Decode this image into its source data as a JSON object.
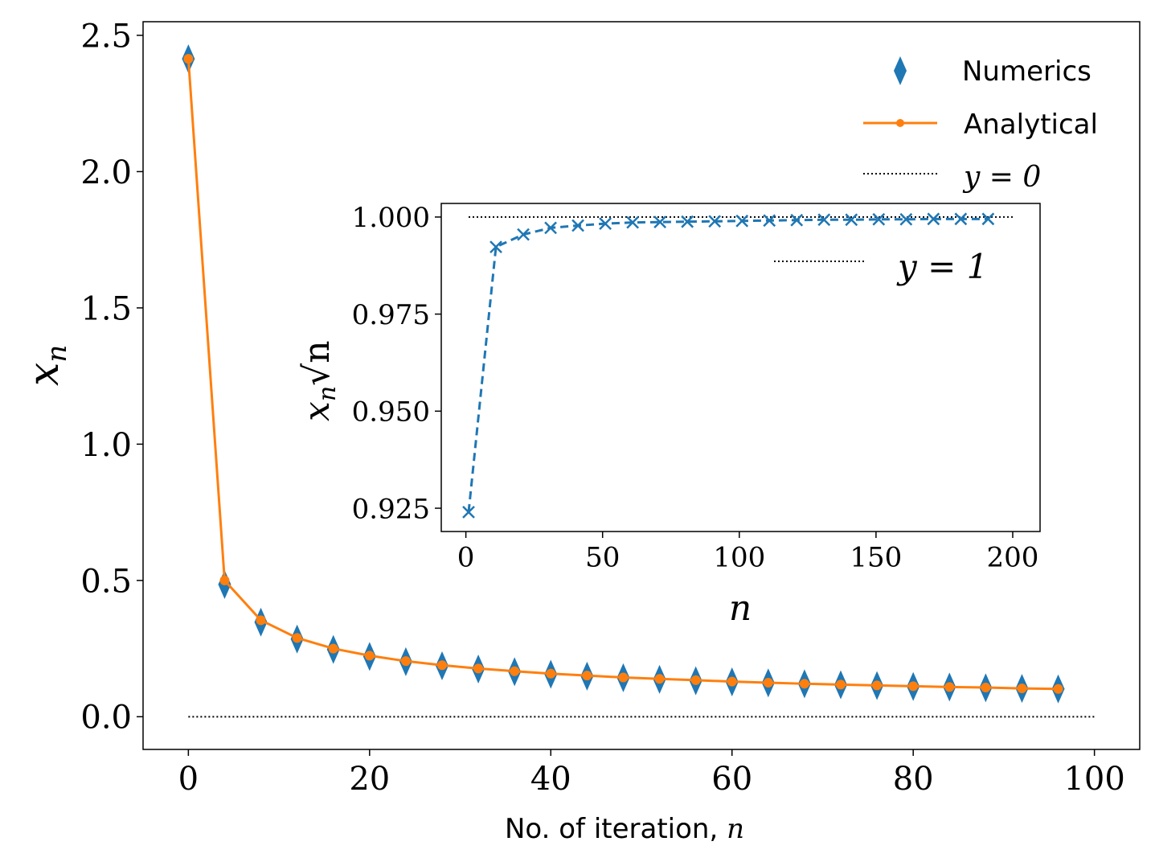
{
  "chart_data": [
    {
      "type": "line",
      "xlabel_text": "No. of iteration, ",
      "xlabel_var": "n",
      "ylabel": "x",
      "ylabel_sub": "n",
      "xlim": [
        -5,
        105
      ],
      "ylim": [
        -0.12,
        2.55
      ],
      "xticks": [
        "0",
        "20",
        "40",
        "60",
        "80",
        "100"
      ],
      "xtick_values": [
        0,
        20,
        40,
        60,
        80,
        100
      ],
      "yticks": [
        "0.0",
        "0.5",
        "1.0",
        "1.5",
        "2.0",
        "2.5"
      ],
      "ytick_values": [
        0.0,
        0.5,
        1.0,
        1.5,
        2.0,
        2.5
      ],
      "legend": [
        "Numerics",
        "Analytical",
        "y = 0"
      ],
      "legend_position": "top-right",
      "series": [
        {
          "name": "Numerics",
          "style": "diamond-markers",
          "color": "#1f77b4",
          "x": [
            0,
            4,
            8,
            12,
            16,
            20,
            24,
            28,
            32,
            36,
            40,
            44,
            48,
            52,
            56,
            60,
            64,
            68,
            72,
            76,
            80,
            84,
            88,
            92,
            96
          ],
          "values": [
            2.414,
            0.485,
            0.347,
            0.285,
            0.247,
            0.221,
            0.202,
            0.187,
            0.175,
            0.165,
            0.156,
            0.149,
            0.143,
            0.137,
            0.132,
            0.128,
            0.124,
            0.121,
            0.117,
            0.114,
            0.111,
            0.109,
            0.106,
            0.104,
            0.102
          ]
        },
        {
          "name": "Analytical",
          "style": "solid-line-dots",
          "color": "#ff7f0e",
          "x": [
            0,
            4,
            8,
            12,
            16,
            20,
            24,
            28,
            32,
            36,
            40,
            44,
            48,
            52,
            56,
            60,
            64,
            68,
            72,
            76,
            80,
            84,
            88,
            92,
            96
          ],
          "values": [
            2.414,
            0.5,
            0.354,
            0.289,
            0.25,
            0.224,
            0.204,
            0.189,
            0.177,
            0.167,
            0.158,
            0.151,
            0.144,
            0.139,
            0.134,
            0.129,
            0.125,
            0.121,
            0.118,
            0.115,
            0.112,
            0.109,
            0.107,
            0.104,
            0.102
          ]
        },
        {
          "name": "y = 0",
          "style": "dotted",
          "color": "#000000",
          "x": [
            0,
            100
          ],
          "values": [
            0,
            0
          ]
        }
      ]
    },
    {
      "type": "line",
      "placement": "inset",
      "xlabel": "n",
      "ylabel": "x",
      "ylabel_sub": "n",
      "ylabel_sqrt": "√n",
      "xlim": [
        -9,
        210
      ],
      "ylim": [
        0.919,
        1.0035
      ],
      "xticks": [
        "0",
        "50",
        "100",
        "150",
        "200"
      ],
      "xtick_values": [
        0,
        50,
        100,
        150,
        200
      ],
      "yticks": [
        "0.925",
        "0.950",
        "0.975",
        "1.000"
      ],
      "ytick_values": [
        0.925,
        0.95,
        0.975,
        1.0
      ],
      "legend": [
        "y = 1"
      ],
      "legend_position": "top-right",
      "series": [
        {
          "name": "x_n sqrt(n)",
          "style": "dashed-x-markers",
          "color": "#1f77b4",
          "x": [
            1,
            11,
            21,
            31,
            41,
            51,
            61,
            71,
            81,
            91,
            101,
            111,
            121,
            131,
            141,
            151,
            161,
            171,
            181,
            191
          ],
          "values": [
            0.924,
            0.9923,
            0.9955,
            0.9972,
            0.9978,
            0.9983,
            0.9986,
            0.9987,
            0.9988,
            0.9989,
            0.999,
            0.9991,
            0.9992,
            0.9993,
            0.9993,
            0.9994,
            0.9994,
            0.9995,
            0.9995,
            0.9995
          ]
        },
        {
          "name": "y = 1",
          "style": "dotted",
          "color": "#000000",
          "x": [
            1,
            200
          ],
          "values": [
            1.0,
            1.0
          ]
        }
      ]
    }
  ]
}
